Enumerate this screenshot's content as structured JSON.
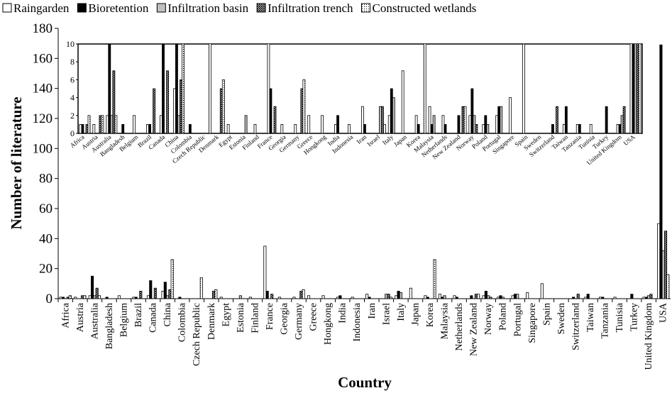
{
  "chart_data": {
    "type": "bar",
    "x_label": "Country",
    "y_label": "Number of literature",
    "categories": [
      "Africa",
      "Austria",
      "Australia",
      "Bangladesh",
      "Belgium",
      "Brazil",
      "Canada",
      "China",
      "Colombia",
      "Czech Republic",
      "Denmark",
      "Egypt",
      "Estonia",
      "Finland",
      "France",
      "Georgia",
      "Germany",
      "Greece",
      "Hongkong",
      "India",
      "Indonesia",
      "Iran",
      "Israel",
      "Italy",
      "Japan",
      "Korea",
      "Malaysia",
      "Netherlands",
      "New Zealand",
      "Norway",
      "Poland",
      "Portugal",
      "Singapore",
      "Spain",
      "Sweden",
      "Switzerland",
      "Taiwan",
      "Tanzania",
      "Tunisia",
      "Turkey",
      "United Kingdom",
      "USA"
    ],
    "series": [
      {
        "name": "Raingarden",
        "color": "#ffffff",
        "values": [
          1,
          1,
          2,
          0,
          2,
          1,
          2,
          5,
          0,
          0,
          0,
          1,
          0,
          1,
          35,
          1,
          1,
          2,
          2,
          1,
          1,
          3,
          0,
          2,
          7,
          2,
          3,
          2,
          0,
          2,
          1,
          2,
          4,
          10,
          0,
          0,
          1,
          1,
          1,
          0,
          1,
          50
        ]
      },
      {
        "name": "Bioretention",
        "color": "#000000",
        "values": [
          1,
          0,
          15,
          1,
          0,
          1,
          12,
          11,
          1,
          0,
          0,
          0,
          0,
          0,
          5,
          0,
          0,
          0,
          0,
          2,
          0,
          1,
          0,
          5,
          0,
          1,
          1,
          1,
          2,
          5,
          2,
          3,
          0,
          0,
          0,
          1,
          3,
          1,
          0,
          3,
          1,
          169
        ]
      },
      {
        "name": "Infiltration basin",
        "color": "#bfbfbf",
        "values": [
          0,
          0,
          2,
          0,
          0,
          0,
          0,
          2,
          0,
          0,
          0,
          0,
          2,
          0,
          0,
          0,
          0,
          0,
          0,
          0,
          0,
          0,
          3,
          4,
          0,
          0,
          2,
          0,
          0,
          2,
          1,
          3,
          0,
          0,
          0,
          0,
          0,
          0,
          0,
          0,
          2,
          32
        ]
      },
      {
        "name": "Infiltration trench",
        "color": "#7f7f7f",
        "values": [
          1,
          2,
          7,
          0,
          0,
          5,
          7,
          6,
          0,
          0,
          5,
          0,
          0,
          0,
          3,
          0,
          5,
          0,
          0,
          0,
          0,
          0,
          3,
          0,
          0,
          0,
          0,
          0,
          3,
          1,
          0,
          0,
          0,
          0,
          0,
          3,
          0,
          0,
          0,
          0,
          3,
          45
        ]
      },
      {
        "name": "Constructed wetlands",
        "color": "#e6e6e6",
        "values": [
          2,
          2,
          2,
          0,
          0,
          0,
          0,
          26,
          0,
          14,
          6,
          0,
          0,
          0,
          0,
          0,
          6,
          0,
          0,
          0,
          0,
          0,
          1,
          0,
          0,
          26,
          0,
          0,
          3,
          0,
          0,
          0,
          0,
          0,
          0,
          0,
          0,
          0,
          0,
          0,
          0,
          16
        ]
      }
    ],
    "ylim": [
      0,
      180
    ],
    "yticks": [
      0,
      20,
      40,
      60,
      80,
      100,
      120,
      140,
      160,
      180
    ],
    "inset": {
      "ylim": [
        0,
        10
      ],
      "yticks": [
        0,
        2,
        4,
        6,
        8,
        10
      ]
    }
  }
}
